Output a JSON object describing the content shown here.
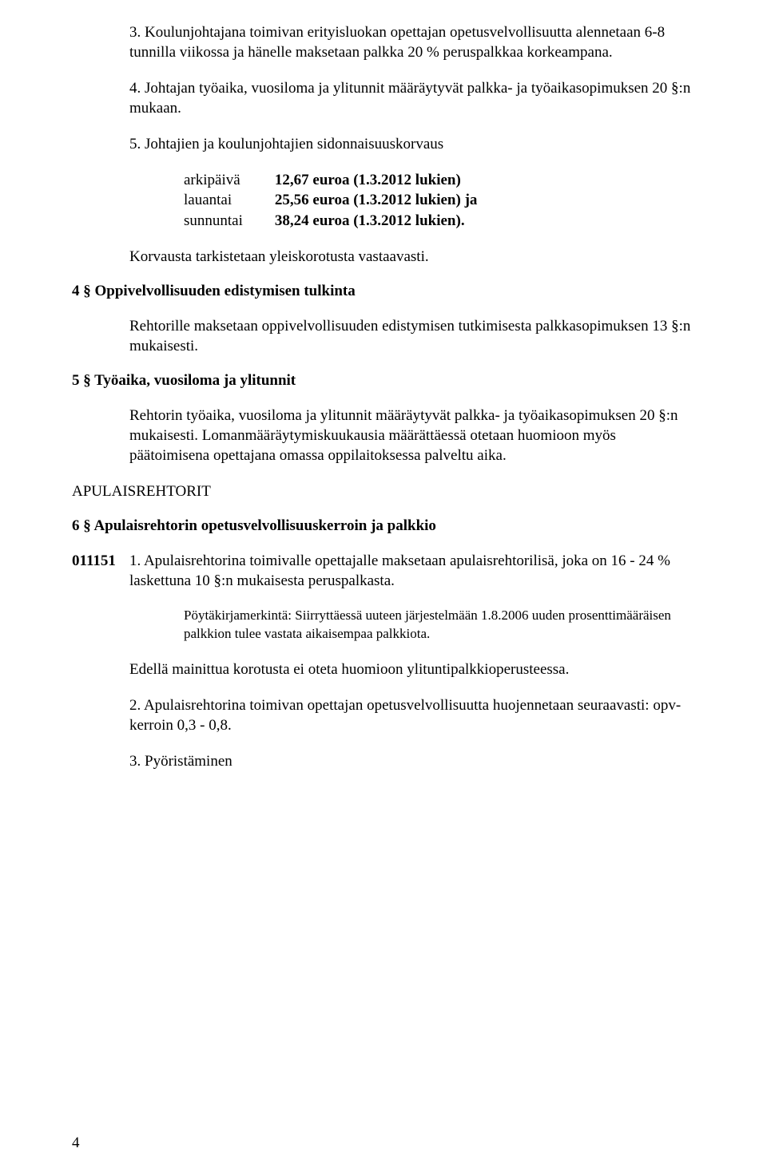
{
  "p_s3": "3. Koulunjohtajana toimivan erityisluokan opettajan opetusvelvollisuutta alennetaan 6-8 tunnilla viikossa ja hänelle maksetaan palkka 20 % perus­palkkaa korkeampana.",
  "p_s4": "4. Johtajan työaika, vuosiloma ja ylitunnit määräytyvät palkka- ja työaika­sopimuksen 20 §:n mukaan.",
  "p_s5": "5. Johtajien ja koulunjohtajien sidonnaisuuskorvaus",
  "table": {
    "rows": [
      {
        "label": "arkipäivä",
        "value": "12,67 euroa (1.3.2012 lukien)"
      },
      {
        "label": "lauantai",
        "value": "25,56 euroa (1.3.2012 lukien) ja"
      },
      {
        "label": "sunnuntai",
        "value": "38,24 euroa (1.3.2012 lukien)."
      }
    ]
  },
  "p_korvaus": "Korvausta tarkistetaan yleiskorotusta vastaavasti.",
  "h_4": "4 § Oppivelvollisuuden edistymisen tulkinta",
  "p_4_1": "Rehtorille maksetaan oppivelvollisuuden edistymisen tutkimisesta palkkaso­pimuksen 13 §:n mukaisesti.",
  "h_5": "5 § Työaika, vuosiloma ja ylitunnit",
  "p_5_1": "Rehtorin työaika, vuosiloma ja ylitunnit määräytyvät palkka- ja työ­aikasopimuksen 20 §:n mukaisesti. Lomanmääräytymiskuukausia määrät­täessä otetaan huomioon myös päätoimisena opettajana omassa oppilai­toksessa palveltu aika.",
  "h_apul": "APULAISREHTORIT",
  "h_6": "6 § Apulaisrehtorin opetusvelvollisuuskerroin ja palkkio",
  "code_011151": "011151",
  "p_6_1": "1. Apulaisrehtorina toimivalle opettajalle maksetaan apulaisrehtorilisä, joka on 16 - 24 % laskettuna 10 §:n mukaisesta peruspalkasta.",
  "note_6": "Pöytäkirjamerkintä: Siirryttäessä uuteen järjestelmään 1.8.2006 uuden pro­senttimääräisen palkkion tulee vastata aikaisempaa palkkiota.",
  "p_6_edella": "Edellä mainittua korotusta ei oteta huomioon ylituntipalkkioperusteessa.",
  "p_6_2": "2. Apulaisrehtorina toimivan opettajan opetusvelvollisuutta huojennetaan seuraavasti: opv-kerroin 0,3 - 0,8.",
  "p_6_3": "3. Pyöristäminen",
  "page_number": "4"
}
